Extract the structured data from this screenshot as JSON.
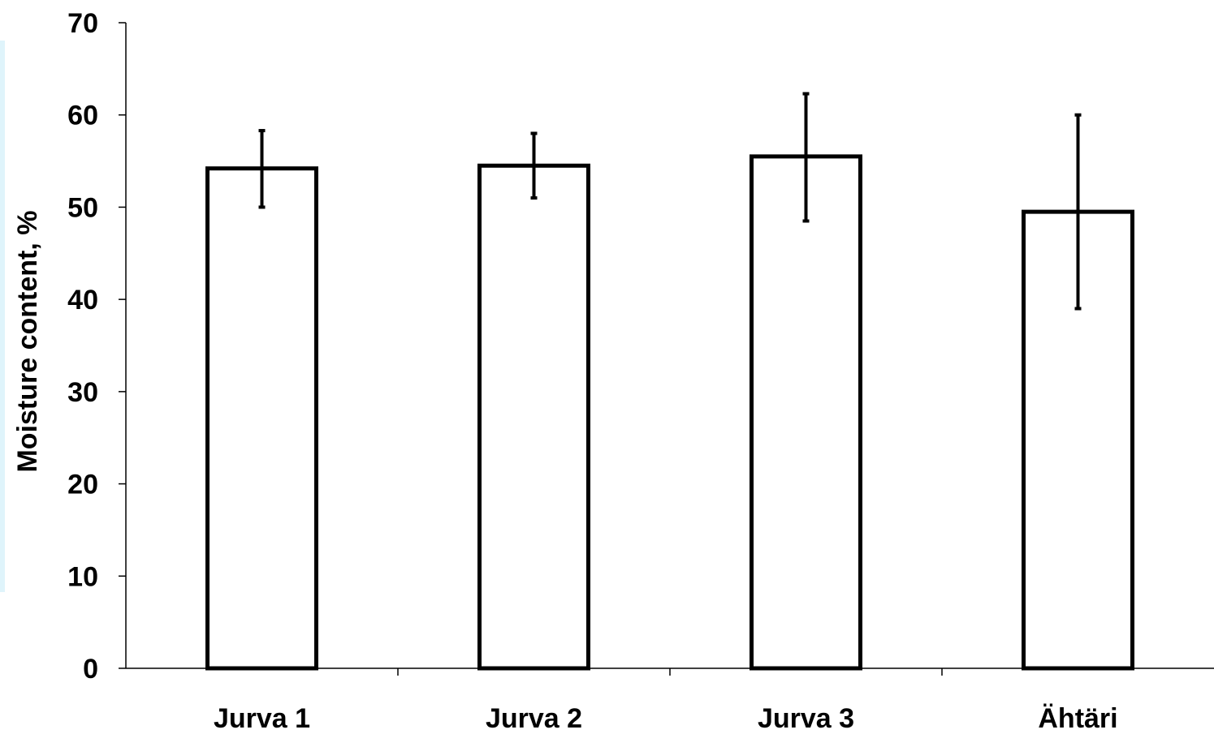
{
  "chart_data": {
    "type": "bar",
    "title": "",
    "xlabel": "",
    "ylabel": "Moisture content, %",
    "ylim": [
      0,
      70
    ],
    "yticks": [
      0,
      10,
      20,
      30,
      40,
      50,
      60,
      70
    ],
    "grid": false,
    "legend": "none",
    "categories": [
      "Jurva 1",
      "Jurva 2",
      "Jurva 3",
      "Ähtäri"
    ],
    "series": [
      {
        "values": [
          54.2,
          54.5,
          55.5,
          49.5
        ],
        "error_low": [
          50.0,
          51.0,
          48.5,
          39.0
        ],
        "error_high": [
          58.3,
          58.0,
          62.3,
          60.0
        ]
      }
    ],
    "bar_fill": "#ffffff",
    "bar_stroke": "#000000"
  }
}
